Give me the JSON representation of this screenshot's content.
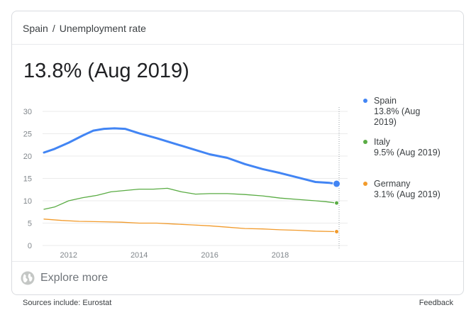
{
  "breadcrumb": {
    "country": "Spain",
    "separator": "/",
    "topic": "Unemployment rate"
  },
  "headline": "13.8% (Aug 2019)",
  "explore_label": "Explore more",
  "footer": {
    "sources": "Sources include: Eurostat",
    "feedback": "Feedback"
  },
  "colors": {
    "spain": "#4285f4",
    "italy": "#5aac44",
    "germany": "#f29b2c",
    "grid": "#ebebeb",
    "axis_text": "#80868b"
  },
  "chart_data": {
    "type": "line",
    "x_range": [
      2011.3,
      2019.67
    ],
    "ylim": [
      0,
      30
    ],
    "yticks": [
      0,
      5,
      10,
      15,
      20,
      25,
      30
    ],
    "xticks": [
      2012,
      2014,
      2016,
      2018
    ],
    "grid": "horizontal",
    "legend_position": "right",
    "series": [
      {
        "name": "Spain",
        "key": "spain",
        "label_line1": "13.8% (Aug",
        "label_line2": "2019)",
        "points": [
          [
            2011.3,
            20.8
          ],
          [
            2011.6,
            21.6
          ],
          [
            2012.0,
            23.0
          ],
          [
            2012.4,
            24.6
          ],
          [
            2012.7,
            25.7
          ],
          [
            2013.0,
            26.1
          ],
          [
            2013.3,
            26.2
          ],
          [
            2013.6,
            26.1
          ],
          [
            2014.0,
            25.1
          ],
          [
            2014.5,
            24.0
          ],
          [
            2015.0,
            22.8
          ],
          [
            2015.5,
            21.6
          ],
          [
            2016.0,
            20.4
          ],
          [
            2016.5,
            19.6
          ],
          [
            2017.0,
            18.2
          ],
          [
            2017.5,
            17.1
          ],
          [
            2018.0,
            16.2
          ],
          [
            2018.5,
            15.2
          ],
          [
            2019.0,
            14.2
          ],
          [
            2019.4,
            14.0
          ],
          [
            2019.6,
            13.8
          ]
        ]
      },
      {
        "name": "Italy",
        "key": "italy",
        "label_line1": "9.5% (Aug 2019)",
        "label_line2": "",
        "points": [
          [
            2011.3,
            8.1
          ],
          [
            2011.6,
            8.6
          ],
          [
            2012.0,
            10.0
          ],
          [
            2012.4,
            10.7
          ],
          [
            2012.8,
            11.2
          ],
          [
            2013.2,
            12.0
          ],
          [
            2013.6,
            12.3
          ],
          [
            2014.0,
            12.6
          ],
          [
            2014.4,
            12.6
          ],
          [
            2014.8,
            12.8
          ],
          [
            2015.2,
            12.0
          ],
          [
            2015.6,
            11.5
          ],
          [
            2016.0,
            11.6
          ],
          [
            2016.5,
            11.6
          ],
          [
            2017.0,
            11.4
          ],
          [
            2017.5,
            11.1
          ],
          [
            2018.0,
            10.6
          ],
          [
            2018.5,
            10.3
          ],
          [
            2019.0,
            10.0
          ],
          [
            2019.3,
            9.8
          ],
          [
            2019.6,
            9.5
          ]
        ]
      },
      {
        "name": "Germany",
        "key": "germany",
        "label_line1": "3.1% (Aug 2019)",
        "label_line2": "",
        "points": [
          [
            2011.3,
            5.9
          ],
          [
            2011.8,
            5.6
          ],
          [
            2012.3,
            5.4
          ],
          [
            2013.0,
            5.3
          ],
          [
            2013.5,
            5.2
          ],
          [
            2014.0,
            5.0
          ],
          [
            2014.5,
            5.0
          ],
          [
            2015.0,
            4.8
          ],
          [
            2015.5,
            4.6
          ],
          [
            2016.0,
            4.4
          ],
          [
            2016.5,
            4.1
          ],
          [
            2017.0,
            3.8
          ],
          [
            2017.5,
            3.7
          ],
          [
            2018.0,
            3.5
          ],
          [
            2018.5,
            3.4
          ],
          [
            2019.0,
            3.2
          ],
          [
            2019.6,
            3.1
          ]
        ]
      }
    ]
  }
}
